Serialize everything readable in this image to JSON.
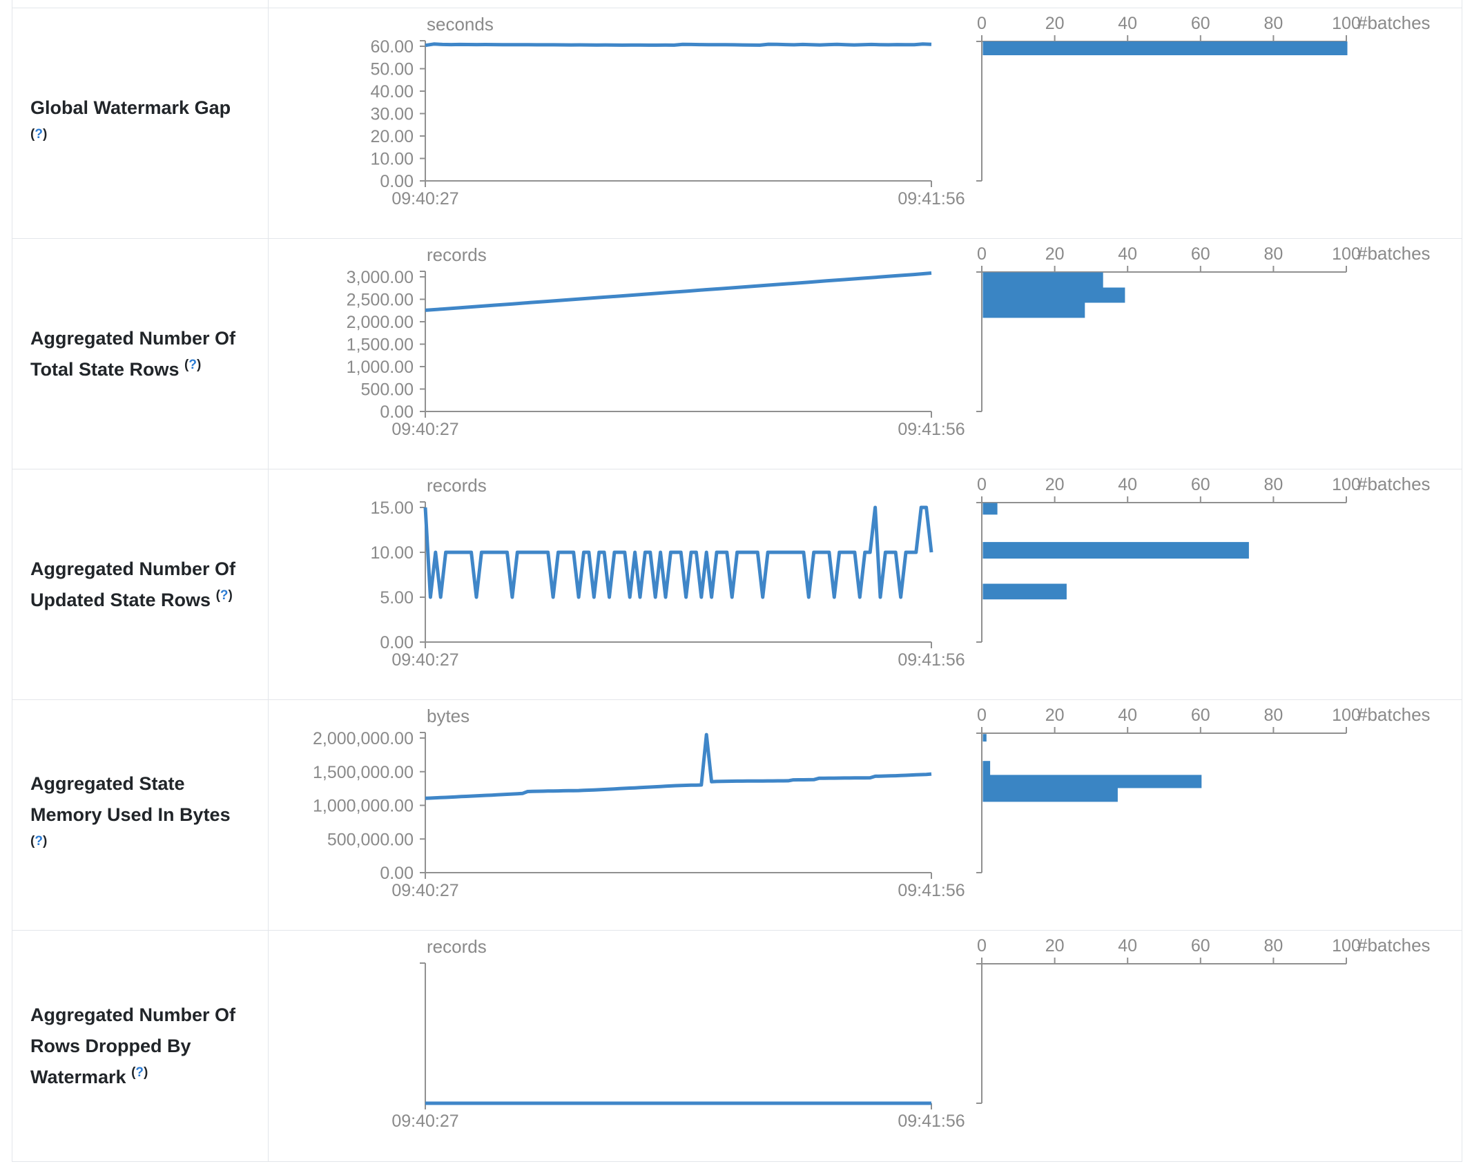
{
  "colors": {
    "line": "#3f86c8",
    "bar": "#3a85c4",
    "axis": "#909090",
    "gray": "#8a8a8a",
    "label_text": "#212529",
    "help_link": "#2b7bd3",
    "border": "#e3e6ea"
  },
  "shared": {
    "help": {
      "open": "(",
      "q": "?",
      "close": ")"
    },
    "x_start": "09:40:27",
    "x_end": "09:41:56",
    "batches_label": "#batches",
    "hist_ticks": [
      {
        "v": 0,
        "label": "0"
      },
      {
        "v": 20,
        "label": "20"
      },
      {
        "v": 40,
        "label": "40"
      },
      {
        "v": 60,
        "label": "60"
      },
      {
        "v": 80,
        "label": "80"
      },
      {
        "v": 100,
        "label": "100"
      }
    ]
  },
  "rows": [
    {
      "title": "Global Watermark Gap"
    },
    {
      "title": "Aggregated Number Of Total State Rows"
    },
    {
      "title": "Aggregated Number Of Updated State Rows"
    },
    {
      "title": "Aggregated State Memory Used In Bytes"
    },
    {
      "title": "Aggregated Number Of Rows Dropped By Watermark"
    }
  ],
  "chart_data": [
    {
      "type": "line+histogram",
      "title": "Global Watermark Gap",
      "unit": "seconds",
      "x_range": [
        "09:40:27",
        "09:41:56"
      ],
      "y_max_tick": 60,
      "y_ticks": [
        {
          "v": 0,
          "label": "0.00"
        },
        {
          "v": 10,
          "label": "10.00"
        },
        {
          "v": 20,
          "label": "20.00"
        },
        {
          "v": 30,
          "label": "30.00"
        },
        {
          "v": 40,
          "label": "40.00"
        },
        {
          "v": 50,
          "label": "50.00"
        },
        {
          "v": 60,
          "label": "60.00"
        }
      ],
      "timeline": [
        60.4,
        61.0,
        60.8,
        60.75,
        60.8,
        60.78,
        60.75,
        60.76,
        60.74,
        60.72,
        60.7,
        60.68,
        60.7,
        60.66,
        60.64,
        60.66,
        60.62,
        60.6,
        60.62,
        60.58,
        60.56,
        60.6,
        60.55,
        60.5,
        60.55,
        60.52,
        60.5,
        60.48,
        60.52,
        60.5,
        60.85,
        60.8,
        60.75,
        60.7,
        60.72,
        60.68,
        60.65,
        60.6,
        60.55,
        60.5,
        60.9,
        60.85,
        60.75,
        60.65,
        60.8,
        60.7,
        60.6,
        60.75,
        60.85,
        60.7,
        60.6,
        60.7,
        60.8,
        60.72,
        60.65,
        60.75,
        60.7,
        60.68,
        61.0,
        60.85
      ],
      "histogram": {
        "axis_max_batches": 100,
        "vmax": 62.15,
        "bars": [
          {
            "hi": 62.15,
            "lo": 56.0,
            "count": 100
          }
        ]
      }
    },
    {
      "type": "line+histogram",
      "title": "Aggregated Number Of Total State Rows",
      "unit": "records",
      "x_range": [
        "09:40:27",
        "09:41:56"
      ],
      "y_max_tick": 3000,
      "y_ticks": [
        {
          "v": 0,
          "label": "0.00"
        },
        {
          "v": 500,
          "label": "500.00"
        },
        {
          "v": 1000,
          "label": "1,000.00"
        },
        {
          "v": 1500,
          "label": "1,500.00"
        },
        {
          "v": 2000,
          "label": "2,000.00"
        },
        {
          "v": 2500,
          "label": "2,500.00"
        },
        {
          "v": 3000,
          "label": "3,000.00"
        }
      ],
      "timeline": [
        2255,
        2283,
        2312,
        2340,
        2369,
        2397,
        2426,
        2454,
        2483,
        2511,
        2540,
        2568,
        2597,
        2625,
        2654,
        2682,
        2711,
        2739,
        2768,
        2796,
        2825,
        2853,
        2882,
        2910,
        2939,
        2967,
        2996,
        3024,
        3053,
        3085
      ],
      "histogram": {
        "axis_max_batches": 100,
        "vmax": 3107.7,
        "bars": [
          {
            "hi": 3100,
            "lo": 2762,
            "count": 33
          },
          {
            "hi": 2762,
            "lo": 2424,
            "count": 39
          },
          {
            "hi": 2424,
            "lo": 2086,
            "count": 28
          }
        ]
      }
    },
    {
      "type": "line+histogram",
      "title": "Aggregated Number Of Updated State Rows",
      "unit": "records",
      "x_range": [
        "09:40:27",
        "09:41:56"
      ],
      "y_max_tick": 15,
      "y_ticks": [
        {
          "v": 0,
          "label": "0.00"
        },
        {
          "v": 5,
          "label": "5.00"
        },
        {
          "v": 10,
          "label": "10.00"
        },
        {
          "v": 15,
          "label": "15.00"
        }
      ],
      "timeline": [
        15,
        5,
        10,
        5,
        10,
        10,
        10,
        10,
        10,
        10,
        5,
        10,
        10,
        10,
        10,
        10,
        10,
        5,
        10,
        10,
        10,
        10,
        10,
        10,
        10,
        5,
        10,
        10,
        10,
        10,
        5,
        10,
        10,
        5,
        10,
        10,
        5,
        10,
        10,
        10,
        5,
        10,
        5,
        10,
        10,
        5,
        10,
        5,
        10,
        10,
        10,
        5,
        10,
        10,
        5,
        10,
        5,
        10,
        10,
        10,
        5,
        10,
        10,
        10,
        10,
        10,
        5,
        10,
        10,
        10,
        10,
        10,
        10,
        10,
        10,
        5,
        10,
        10,
        10,
        10,
        5,
        10,
        10,
        10,
        10,
        5,
        10,
        10,
        15,
        5,
        10,
        10,
        10,
        5,
        10,
        10,
        10,
        15,
        15,
        10
      ],
      "histogram": {
        "axis_max_batches": 100,
        "vmax": 15.54,
        "bars": [
          {
            "hi": 15.5,
            "lo": 14.2,
            "count": 4
          },
          {
            "hi": 11.15,
            "lo": 9.3,
            "count": 73
          },
          {
            "hi": 6.5,
            "lo": 4.75,
            "count": 23
          }
        ]
      }
    },
    {
      "type": "line+histogram",
      "title": "Aggregated State Memory Used In Bytes",
      "unit": "bytes",
      "x_range": [
        "09:40:27",
        "09:41:56"
      ],
      "y_max_tick": 2000000,
      "y_ticks": [
        {
          "v": 0,
          "label": "0.00"
        },
        {
          "v": 500000,
          "label": "500,000.00"
        },
        {
          "v": 1000000,
          "label": "1,000,000.00"
        },
        {
          "v": 1500000,
          "label": "1,500,000.00"
        },
        {
          "v": 2000000,
          "label": "2,000,000.00"
        }
      ],
      "timeline": [
        1105000,
        1108000,
        1112000,
        1115000,
        1118000,
        1122000,
        1126000,
        1130000,
        1133000,
        1137000,
        1141000,
        1145000,
        1149000,
        1152000,
        1156000,
        1160000,
        1164000,
        1168000,
        1172000,
        1176000,
        1205000,
        1207000,
        1209000,
        1210000,
        1212000,
        1213000,
        1214000,
        1216000,
        1217000,
        1218000,
        1220000,
        1223000,
        1226000,
        1229000,
        1232000,
        1236000,
        1240000,
        1244000,
        1248000,
        1252000,
        1256000,
        1260000,
        1264000,
        1268000,
        1272000,
        1276000,
        1280000,
        1284000,
        1288000,
        1292000,
        1295000,
        1297000,
        1299000,
        1301000,
        1303000,
        2050000,
        1352000,
        1355000,
        1357000,
        1358000,
        1359000,
        1360000,
        1360000,
        1361000,
        1361000,
        1362000,
        1362000,
        1363000,
        1363000,
        1364000,
        1364000,
        1365000,
        1378000,
        1379000,
        1380000,
        1381000,
        1382000,
        1402000,
        1403000,
        1404000,
        1404000,
        1405000,
        1406000,
        1406000,
        1407000,
        1408000,
        1408000,
        1409000,
        1432000,
        1434000,
        1436000,
        1438000,
        1440000,
        1443000,
        1446000,
        1450000,
        1453000,
        1456000,
        1460000,
        1466000
      ],
      "histogram": {
        "axis_max_batches": 100,
        "vmax": 2071800,
        "bars": [
          {
            "hi": 2060000,
            "lo": 1948000,
            "count": 1
          },
          {
            "hi": 1660000,
            "lo": 1452000,
            "count": 2
          },
          {
            "hi": 1452000,
            "lo": 1256000,
            "count": 60
          },
          {
            "hi": 1256000,
            "lo": 1052000,
            "count": 37
          }
        ]
      }
    },
    {
      "type": "line+histogram",
      "title": "Aggregated Number Of Rows Dropped By Watermark",
      "unit": "records",
      "x_range": [
        "09:40:27",
        "09:41:56"
      ],
      "y_max_tick": 1,
      "y_ticks": [],
      "timeline": [
        0,
        0,
        0,
        0,
        0,
        0,
        0,
        0,
        0,
        0,
        0,
        0,
        0,
        0,
        0,
        0,
        0,
        0,
        0,
        0,
        0,
        0,
        0,
        0,
        0
      ],
      "histogram": {
        "axis_max_batches": 100,
        "vmax": 1,
        "bars": []
      }
    }
  ]
}
